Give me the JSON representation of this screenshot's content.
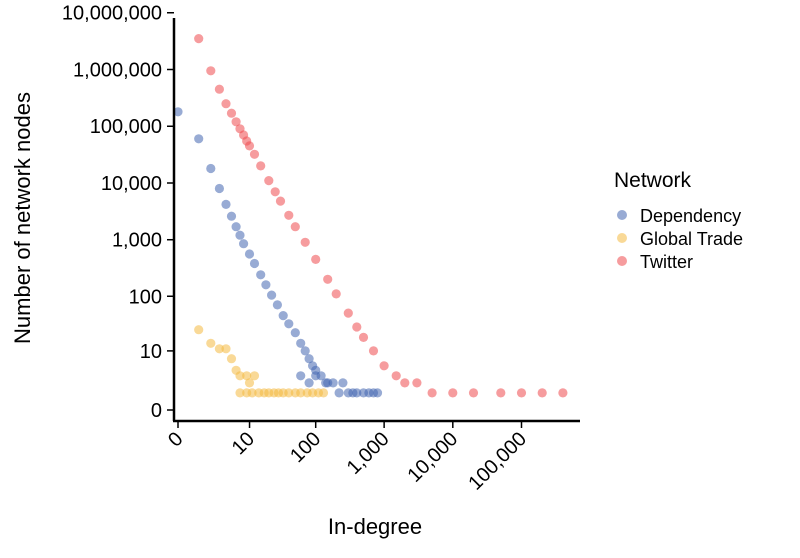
{
  "chart_data": {
    "type": "scatter",
    "xlabel": "In-degree",
    "ylabel": "Number of network nodes",
    "x_scale": "log1p",
    "y_scale": "log1p",
    "xlim": [
      0,
      500000
    ],
    "ylim": [
      0,
      10000000
    ],
    "x_ticks": [
      {
        "value": 0,
        "label": "0"
      },
      {
        "value": 10,
        "label": "10"
      },
      {
        "value": 100,
        "label": "100"
      },
      {
        "value": 1000,
        "label": "1,000"
      },
      {
        "value": 10000,
        "label": "10,000"
      },
      {
        "value": 100000,
        "label": "100,000"
      }
    ],
    "y_ticks": [
      {
        "value": 0,
        "label": "0"
      },
      {
        "value": 10,
        "label": "10"
      },
      {
        "value": 100,
        "label": "100"
      },
      {
        "value": 1000,
        "label": "1,000"
      },
      {
        "value": 10000,
        "label": "10,000"
      },
      {
        "value": 100000,
        "label": "100,000"
      },
      {
        "value": 1000000,
        "label": "1,000,000"
      },
      {
        "value": 10000000,
        "label": "10,000,000"
      }
    ],
    "grid": false,
    "legend": {
      "title": "Network",
      "position": "right"
    },
    "series": [
      {
        "name": "Dependency",
        "color": "#4466b0",
        "points": [
          [
            0,
            180000
          ],
          [
            1,
            60000
          ],
          [
            2,
            18000
          ],
          [
            3,
            8000
          ],
          [
            4,
            4200
          ],
          [
            5,
            2600
          ],
          [
            6,
            1700
          ],
          [
            7,
            1200
          ],
          [
            8,
            850
          ],
          [
            10,
            560
          ],
          [
            12,
            380
          ],
          [
            15,
            240
          ],
          [
            18,
            160
          ],
          [
            22,
            105
          ],
          [
            27,
            70
          ],
          [
            33,
            45
          ],
          [
            40,
            32
          ],
          [
            50,
            22
          ],
          [
            60,
            14
          ],
          [
            70,
            10
          ],
          [
            80,
            7
          ],
          [
            90,
            5
          ],
          [
            100,
            4
          ],
          [
            120,
            3
          ],
          [
            150,
            2
          ],
          [
            180,
            2
          ],
          [
            220,
            1
          ],
          [
            250,
            2
          ],
          [
            300,
            1
          ],
          [
            350,
            1
          ],
          [
            400,
            1
          ],
          [
            500,
            1
          ],
          [
            600,
            1
          ],
          [
            700,
            1
          ],
          [
            800,
            1
          ],
          [
            60,
            3
          ],
          [
            80,
            2
          ],
          [
            100,
            3
          ],
          [
            140,
            2
          ]
        ]
      },
      {
        "name": "Global Trade",
        "color": "#f4b942",
        "points": [
          [
            1,
            25
          ],
          [
            2,
            14
          ],
          [
            3,
            11
          ],
          [
            4,
            11
          ],
          [
            5,
            7
          ],
          [
            6,
            4
          ],
          [
            7,
            3
          ],
          [
            9,
            3
          ],
          [
            10,
            2
          ],
          [
            12,
            3
          ],
          [
            7,
            1
          ],
          [
            9,
            1
          ],
          [
            11,
            1
          ],
          [
            14,
            1
          ],
          [
            17,
            1
          ],
          [
            20,
            1
          ],
          [
            24,
            1
          ],
          [
            28,
            1
          ],
          [
            33,
            1
          ],
          [
            40,
            1
          ],
          [
            50,
            1
          ],
          [
            60,
            1
          ],
          [
            75,
            1
          ],
          [
            90,
            1
          ],
          [
            110,
            1
          ],
          [
            130,
            1
          ]
        ]
      },
      {
        "name": "Twitter",
        "color": "#ee4b4e",
        "points": [
          [
            1,
            3500000
          ],
          [
            2,
            950000
          ],
          [
            3,
            450000
          ],
          [
            4,
            250000
          ],
          [
            5,
            170000
          ],
          [
            6,
            120000
          ],
          [
            7,
            90000
          ],
          [
            8,
            70000
          ],
          [
            9,
            55000
          ],
          [
            10,
            45000
          ],
          [
            12,
            32000
          ],
          [
            15,
            20000
          ],
          [
            20,
            11000
          ],
          [
            25,
            7000
          ],
          [
            30,
            4800
          ],
          [
            40,
            2700
          ],
          [
            50,
            1700
          ],
          [
            70,
            900
          ],
          [
            100,
            450
          ],
          [
            150,
            200
          ],
          [
            200,
            110
          ],
          [
            300,
            50
          ],
          [
            400,
            28
          ],
          [
            500,
            18
          ],
          [
            700,
            10
          ],
          [
            1000,
            5
          ],
          [
            1500,
            3
          ],
          [
            2000,
            2
          ],
          [
            3000,
            2
          ],
          [
            5000,
            1
          ],
          [
            10000,
            1
          ],
          [
            20000,
            1
          ],
          [
            50000,
            1
          ],
          [
            100000,
            1
          ],
          [
            200000,
            1
          ],
          [
            400000,
            1
          ]
        ]
      }
    ]
  }
}
